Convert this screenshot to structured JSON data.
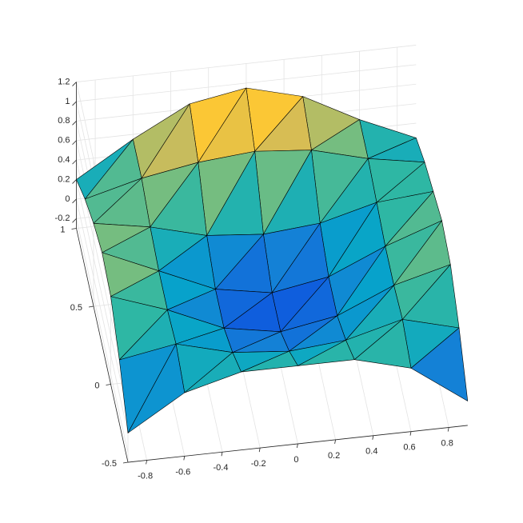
{
  "chart_data": {
    "type": "surface",
    "xlim": [
      -0.9,
      0.9
    ],
    "ylim": [
      -0.5,
      1
    ],
    "zlim": [
      -0.3,
      1.2
    ],
    "xticks": [
      -0.8,
      -0.6,
      -0.4,
      -0.2,
      0,
      0.2,
      0.4,
      0.6,
      0.8
    ],
    "yticks": [
      -0.5,
      0,
      0.5,
      1
    ],
    "zticks": [
      -0.2,
      0,
      0.2,
      0.4,
      0.6,
      0.8,
      1,
      1.2
    ],
    "grid": true,
    "colormap": [
      "#352a87",
      "#0f5cdd",
      "#1481d6",
      "#06a4ca",
      "#2eb7a4",
      "#87bf77",
      "#d1bb59",
      "#fec832",
      "#f9fb0e"
    ],
    "x": [
      -0.9,
      -0.6,
      -0.3,
      0,
      0.3,
      0.6,
      0.9
    ],
    "y": [
      -0.5,
      -0.25,
      0,
      0.25,
      0.5,
      0.75,
      1
    ],
    "z": [
      [
        0.0,
        0.35,
        0.5,
        0.5,
        0.5,
        0.35,
        -0.05
      ],
      [
        0.35,
        0.45,
        0.3,
        0.25,
        0.3,
        0.45,
        0.3
      ],
      [
        0.6,
        0.4,
        0.15,
        0.05,
        0.15,
        0.4,
        0.55
      ],
      [
        0.65,
        0.4,
        0.15,
        0.05,
        0.15,
        0.4,
        0.6
      ],
      [
        0.55,
        0.45,
        0.3,
        0.25,
        0.3,
        0.45,
        0.5
      ],
      [
        0.4,
        0.55,
        0.65,
        0.7,
        0.65,
        0.5,
        0.4
      ],
      [
        0.2,
        0.55,
        0.85,
        0.95,
        0.8,
        0.5,
        0.25
      ]
    ]
  }
}
